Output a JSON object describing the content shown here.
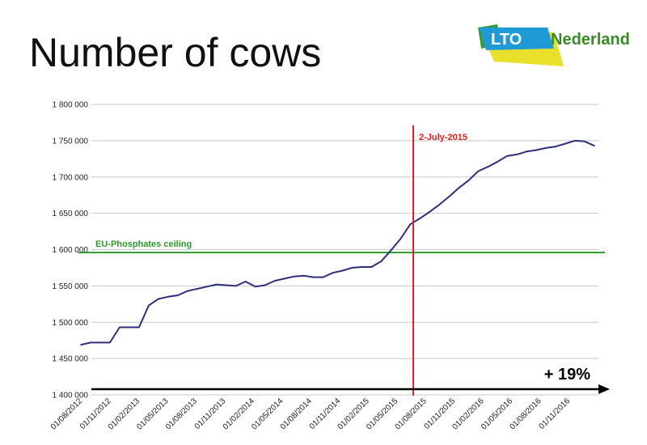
{
  "slide": {
    "title": "Number of cows"
  },
  "logo": {
    "left_text": "LTO",
    "right_text": "Nederland"
  },
  "colors": {
    "series": "#2e2f7a",
    "ceiling": "#2e9a2e",
    "marker": "#e02020",
    "marker_text": "#e02020",
    "ceiling_text": "#2e9a2e",
    "arrow": "#000000",
    "grid": "#c8c8c8",
    "logo_blue": "#1e9bd7",
    "logo_yellow": "#e8e02a",
    "logo_green": "#3a9a3a"
  },
  "chart_data": {
    "type": "line",
    "title": "",
    "xlabel": "",
    "ylabel": "",
    "ylim": [
      1400000,
      1800000
    ],
    "yticks": [
      1400000,
      1450000,
      1500000,
      1550000,
      1600000,
      1650000,
      1700000,
      1750000,
      1800000
    ],
    "ytick_labels": [
      "1 400 000",
      "1 450 000",
      "1 500 000",
      "1 550 000",
      "1 600 000",
      "1 650 000",
      "1 700 000",
      "1 750 000",
      "1 800 000"
    ],
    "xtick_labels": [
      "01/08/2012",
      "01/11/2012",
      "01/02/2013",
      "01/05/2013",
      "01/08/2013",
      "01/11/2013",
      "01/02/2014",
      "01/05/2014",
      "01/08/2014",
      "01/11/2014",
      "01/02/2015",
      "01/05/2015",
      "01/08/2015",
      "01/11/2015",
      "01/02/2016",
      "01/05/2016",
      "01/08/2016",
      "01/11/2016"
    ],
    "grid": true,
    "series": [
      {
        "name": "",
        "values": [
          1469000,
          1472000,
          1472000,
          1472000,
          1493000,
          1493000,
          1493000,
          1523000,
          1532000,
          1535000,
          1537000,
          1543000,
          1546000,
          1549000,
          1552000,
          1551000,
          1550000,
          1556000,
          1549000,
          1551000,
          1557000,
          1560000,
          1563000,
          1564000,
          1562000,
          1562000,
          1568000,
          1571000,
          1575000,
          1576000,
          1576000,
          1584000,
          1599000,
          1615000,
          1635000,
          1643000,
          1652000,
          1662000,
          1673000,
          1685000,
          1695000,
          1708000,
          1714000,
          1721000,
          1729000,
          1731000,
          1735000,
          1737000,
          1740000,
          1742000,
          1746000,
          1750000,
          1749000,
          1743000
        ]
      }
    ],
    "hlines": [
      {
        "value": 1596000,
        "label": "EU-Phosphates ceiling"
      }
    ],
    "vlines": [
      {
        "x": "2015-07-02",
        "label": "2-July-2015"
      }
    ],
    "annotations": [
      {
        "text": "+ 19%"
      }
    ]
  }
}
